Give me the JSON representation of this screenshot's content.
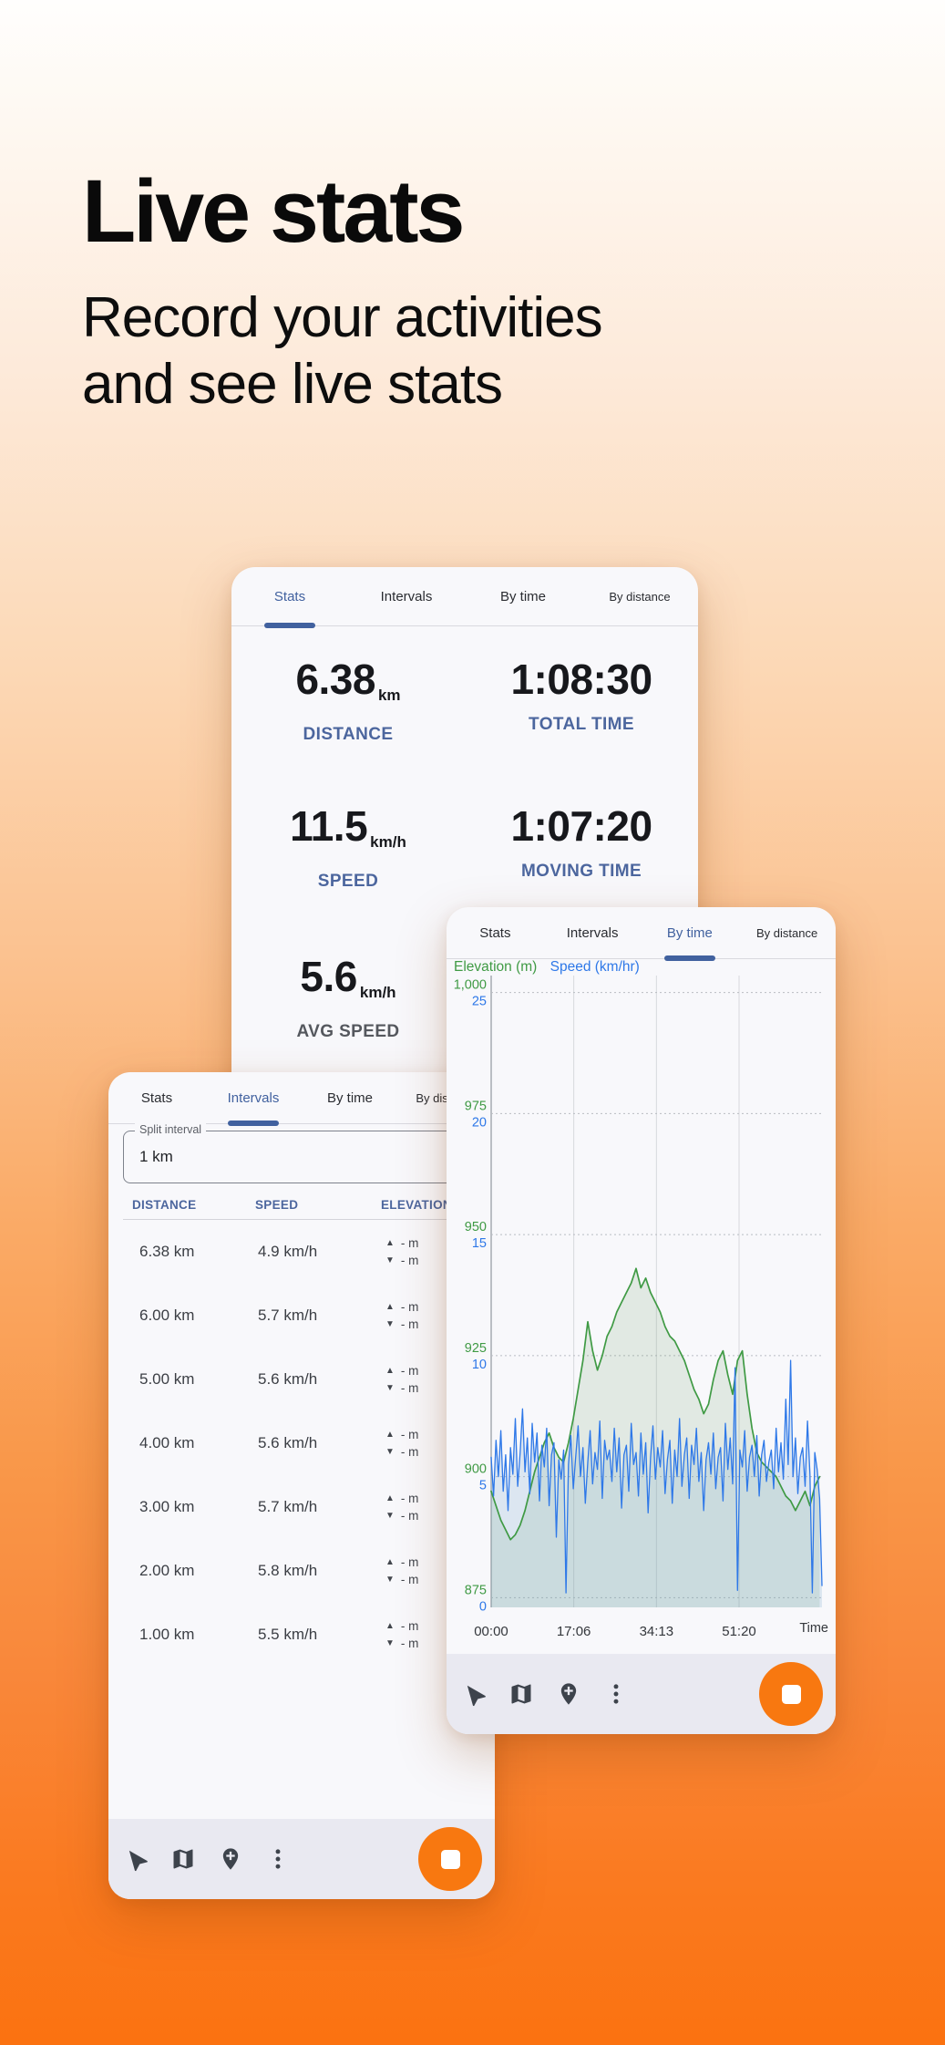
{
  "hero": {
    "title": "Live stats",
    "subtitle_line1": "Record your activities",
    "subtitle_line2": "and see live stats"
  },
  "tabs": [
    "Stats",
    "Intervals",
    "By time",
    "By distance"
  ],
  "stats_card": {
    "active_tab_index": 0,
    "stats": [
      {
        "value": "6.38",
        "unit": "km",
        "label": "DISTANCE",
        "muted": false
      },
      {
        "value": "1:08:30",
        "unit": "",
        "label": "TOTAL TIME",
        "muted": false
      },
      {
        "value": "11.5",
        "unit": "km/h",
        "label": "SPEED",
        "muted": false
      },
      {
        "value": "1:07:20",
        "unit": "",
        "label": "MOVING TIME",
        "muted": false
      },
      {
        "value": "5.6",
        "unit": "km/h",
        "label": "AVG SPEED",
        "muted": true
      }
    ]
  },
  "intervals_card": {
    "active_tab_index": 1,
    "split_interval": {
      "label": "Split interval",
      "value": "1 km"
    },
    "table": {
      "headers": [
        "DISTANCE",
        "SPEED",
        "ELEVATION"
      ],
      "rows": [
        {
          "distance": "6.38 km",
          "speed": "4.9 km/h",
          "elev_up": "- m",
          "elev_down": "- m"
        },
        {
          "distance": "6.00 km",
          "speed": "5.7 km/h",
          "elev_up": "- m",
          "elev_down": "- m"
        },
        {
          "distance": "5.00 km",
          "speed": "5.6 km/h",
          "elev_up": "- m",
          "elev_down": "- m"
        },
        {
          "distance": "4.00 km",
          "speed": "5.6 km/h",
          "elev_up": "- m",
          "elev_down": "- m"
        },
        {
          "distance": "3.00 km",
          "speed": "5.7 km/h",
          "elev_up": "- m",
          "elev_down": "- m"
        },
        {
          "distance": "2.00 km",
          "speed": "5.8 km/h",
          "elev_up": "- m",
          "elev_down": "- m"
        },
        {
          "distance": "1.00 km",
          "speed": "5.5 km/h",
          "elev_up": "- m",
          "elev_down": "- m"
        }
      ]
    }
  },
  "chart_card": {
    "active_tab_index": 2
  },
  "chart_data": {
    "type": "line",
    "title": "",
    "xlabel": "Time",
    "x_range_min": [
      0,
      68.5
    ],
    "x_ticks": [
      {
        "label": "00:00",
        "min": 0
      },
      {
        "label": "17:06",
        "min": 17.1
      },
      {
        "label": "34:13",
        "min": 34.22
      },
      {
        "label": "51:20",
        "min": 51.33
      }
    ],
    "grid": true,
    "legend_position": "top-left",
    "grid_rows": [
      {
        "elev_label": "1,000",
        "elev": 1000,
        "speed_label": "25",
        "speed": 25
      },
      {
        "elev_label": "975",
        "elev": 975,
        "speed_label": "20",
        "speed": 20
      },
      {
        "elev_label": "950",
        "elev": 950,
        "speed_label": "15",
        "speed": 15
      },
      {
        "elev_label": "925",
        "elev": 925,
        "speed_label": "10",
        "speed": 10
      },
      {
        "elev_label": "900",
        "elev": 900,
        "speed_label": "5",
        "speed": 5
      },
      {
        "elev_label": "875",
        "elev": 875,
        "speed_label": "0",
        "speed": 0
      }
    ],
    "axes": {
      "elevation_range": [
        873,
        1003.5
      ],
      "speed_range": [
        -0.4,
        25.7
      ]
    },
    "series": [
      {
        "name": "Elevation (m)",
        "unit": "m",
        "color": "#3f9a44",
        "fill": "rgba(106,153,104,0.16)",
        "x_step_min": 1,
        "values": [
          897,
          894,
          891,
          889,
          887,
          888,
          890,
          893,
          897,
          901,
          904,
          907,
          909,
          906,
          904,
          903,
          907,
          912,
          918,
          924,
          932,
          926,
          922,
          925,
          929,
          931,
          934,
          936,
          938,
          940,
          943,
          939,
          941,
          938,
          936,
          934,
          931,
          929,
          928,
          926,
          924,
          921,
          918,
          916,
          913,
          915,
          920,
          924,
          926,
          921,
          917,
          924,
          926,
          917,
          910,
          905,
          903,
          902,
          901,
          900,
          898,
          896,
          895,
          893,
          895,
          897,
          894,
          898,
          900
        ]
      },
      {
        "name": "Speed (km/hr)",
        "unit": "km/hr",
        "color": "#2e78e8",
        "fill": "rgba(122,167,204,0.22)",
        "x_step_min": 0.5,
        "values": [
          5.8,
          4.2,
          6.5,
          5.0,
          6.9,
          4.4,
          5.9,
          3.6,
          6.2,
          5.1,
          7.4,
          4.6,
          6.0,
          7.8,
          5.2,
          6.6,
          4.3,
          7.2,
          5.6,
          6.8,
          4.0,
          6.3,
          5.4,
          7.0,
          3.8,
          5.9,
          6.4,
          2.5,
          5.7,
          4.9,
          6.1,
          0.2,
          5.5,
          6.7,
          4.5,
          5.8,
          7.1,
          5.0,
          6.2,
          3.9,
          5.6,
          6.9,
          4.7,
          6.0,
          5.3,
          7.3,
          4.1,
          6.5,
          5.7,
          6.1,
          4.8,
          7.0,
          5.2,
          6.6,
          3.7,
          5.9,
          6.3,
          4.4,
          7.2,
          5.5,
          6.0,
          4.2,
          6.8,
          5.1,
          6.4,
          3.5,
          5.8,
          7.1,
          4.9,
          6.2,
          5.4,
          6.9,
          4.3,
          5.7,
          6.5,
          3.9,
          6.1,
          5.0,
          7.4,
          4.6,
          5.9,
          6.6,
          4.1,
          6.3,
          5.5,
          7.0,
          4.8,
          6.0,
          3.6,
          5.7,
          6.4,
          5.1,
          6.8,
          4.5,
          5.8,
          6.2,
          4.0,
          7.2,
          5.3,
          6.6,
          4.7,
          9.5,
          0.3,
          6.1,
          5.4,
          6.9,
          4.4,
          5.8,
          6.3,
          5.0,
          6.7,
          4.2,
          5.9,
          6.5,
          4.8,
          5.6,
          6.1,
          4.5,
          7.0,
          5.2,
          6.4,
          4.9,
          8.2,
          5.5,
          9.8,
          5.0,
          6.6,
          4.3,
          5.8,
          6.2,
          4.6,
          7.3,
          5.1,
          0.2,
          6.0,
          5.3,
          4.1,
          0.5
        ]
      }
    ]
  },
  "toolbar": {
    "icons": [
      "navigate",
      "map",
      "add-location",
      "more"
    ],
    "stop_color": "#f87810"
  },
  "colors": {
    "accent_orange": "#f87810",
    "tab_active_blue": "#41619f",
    "stat_label_blue": "#4c669e",
    "elevation_green": "#3f9a44",
    "speed_blue": "#2e78e8",
    "card_bg": "#f8f8fb",
    "toolbar_bg": "#e9e9f1"
  }
}
